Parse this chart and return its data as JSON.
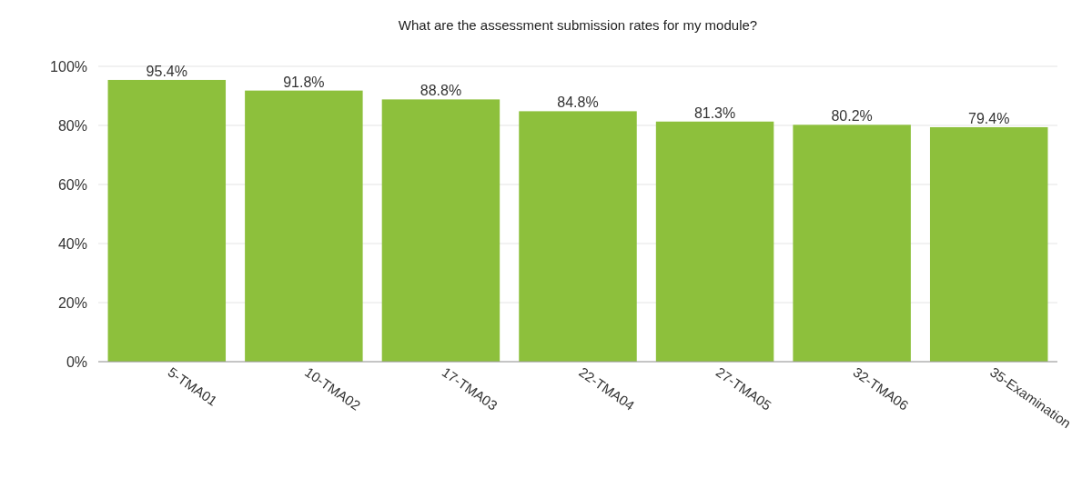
{
  "chart_data": {
    "type": "bar",
    "title": "What are the assessment submission rates for my module?",
    "categories": [
      "5-TMA01",
      "10-TMA02",
      "17-TMA03",
      "22-TMA04",
      "27-TMA05",
      "32-TMA06",
      "35-Examination"
    ],
    "values": [
      95.4,
      91.8,
      88.8,
      84.8,
      81.3,
      80.2,
      79.4
    ],
    "value_labels": [
      "95.4%",
      "91.8%",
      "88.8%",
      "84.8%",
      "81.3%",
      "80.2%",
      "79.4%"
    ],
    "color": "#8dc03c",
    "ylim": [
      0,
      100
    ],
    "yticks": [
      {
        "value": 0,
        "label": "0%"
      },
      {
        "value": 20,
        "label": "20%"
      },
      {
        "value": 40,
        "label": "40%"
      },
      {
        "value": 60,
        "label": "60%"
      },
      {
        "value": 80,
        "label": "80%"
      },
      {
        "value": 100,
        "label": "100%"
      }
    ],
    "grid": "y"
  }
}
